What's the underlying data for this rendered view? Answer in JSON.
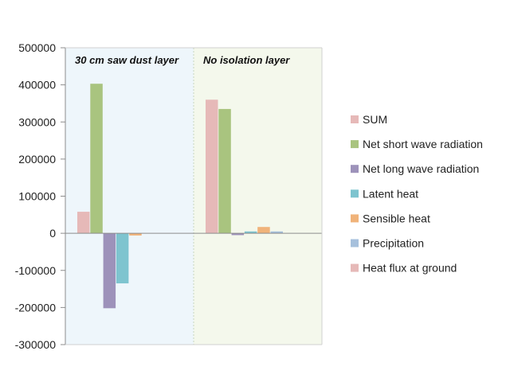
{
  "chart_data": {
    "type": "bar",
    "categories": [
      "30 cm saw dust layer",
      "No isolation layer"
    ],
    "series": [
      {
        "name": "SUM",
        "color": "#e6b9b8",
        "values": [
          58000,
          360000
        ]
      },
      {
        "name": "Net short wave radiation",
        "color": "#a9c47f",
        "values": [
          403000,
          335000
        ]
      },
      {
        "name": "Net long wave radiation",
        "color": "#9d92ba",
        "values": [
          -202000,
          -5000
        ]
      },
      {
        "name": "Latent heat",
        "color": "#7ec4cf",
        "values": [
          -135000,
          5000
        ]
      },
      {
        "name": "Sensible heat",
        "color": "#f0b37a",
        "values": [
          -6000,
          17000
        ]
      },
      {
        "name": "Precipitation",
        "color": "#a6c0dc",
        "values": [
          0,
          5000
        ]
      },
      {
        "name": "Heat flux at ground",
        "color": "#e6b9b8",
        "values": [
          0,
          0
        ]
      }
    ],
    "ylim": [
      -300000,
      500000
    ],
    "yticks": [
      "500000",
      "400000",
      "300000",
      "200000",
      "100000",
      "0",
      "-100000",
      "-200000",
      "-300000"
    ],
    "panel_colors": [
      "#eef6fb",
      "#f4f8ec"
    ],
    "grid": false,
    "legend_position": "right"
  }
}
